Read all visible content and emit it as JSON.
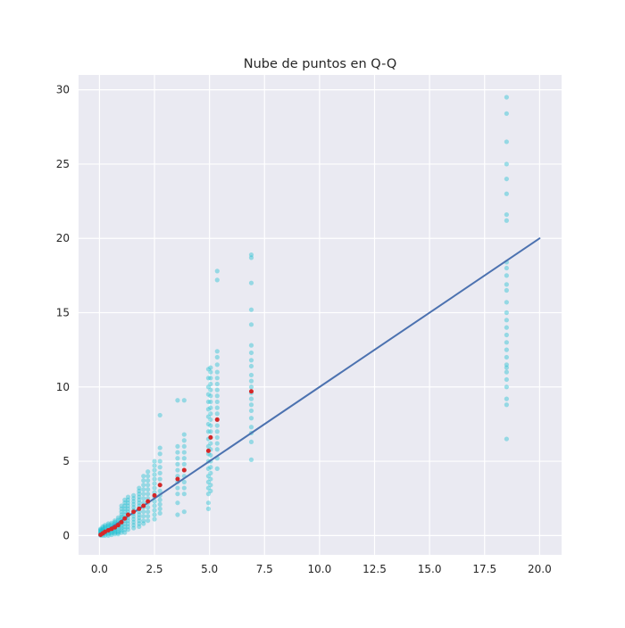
{
  "chart_data": {
    "type": "scatter",
    "title": "Nube de puntos en Q-Q",
    "xlabel": "",
    "ylabel": "",
    "xlim": [
      -0.95,
      21.0
    ],
    "ylim": [
      -1.3,
      31.0
    ],
    "x_ticks": [
      0.0,
      2.5,
      5.0,
      7.5,
      10.0,
      12.5,
      15.0,
      17.5,
      20.0
    ],
    "x_tick_labels": [
      "0.0",
      "2.5",
      "5.0",
      "7.5",
      "10.0",
      "12.5",
      "15.0",
      "17.5",
      "20.0"
    ],
    "y_ticks": [
      0,
      5,
      10,
      15,
      20,
      25,
      30
    ],
    "y_tick_labels": [
      "0",
      "5",
      "10",
      "15",
      "20",
      "25",
      "30"
    ],
    "grid": true,
    "legend": "none",
    "colors": {
      "background": "#eaeaf2",
      "grid": "#ffffff",
      "scatter": "#17becf",
      "median": "#d62728",
      "reference_line": "#4c72b0"
    },
    "reference_line": {
      "x": [
        0,
        20
      ],
      "y": [
        0,
        20
      ]
    },
    "scatter_columns": [
      {
        "x": 0.05,
        "y": [
          0.0,
          0.05,
          0.1,
          0.15,
          0.2,
          0.25,
          0.3,
          0.35,
          0.4,
          0.45
        ]
      },
      {
        "x": 0.15,
        "y": [
          0.0,
          0.1,
          0.2,
          0.3,
          0.4,
          0.5,
          0.6
        ]
      },
      {
        "x": 0.25,
        "y": [
          0.0,
          0.1,
          0.2,
          0.3,
          0.4,
          0.5,
          0.6,
          0.7
        ]
      },
      {
        "x": 0.4,
        "y": [
          0.0,
          0.1,
          0.2,
          0.3,
          0.4,
          0.5,
          0.6,
          0.7,
          0.8
        ]
      },
      {
        "x": 0.55,
        "y": [
          0.05,
          0.15,
          0.25,
          0.35,
          0.45,
          0.55,
          0.65,
          0.75,
          0.85
        ]
      },
      {
        "x": 0.7,
        "y": [
          0.1,
          0.2,
          0.3,
          0.4,
          0.5,
          0.6,
          0.7,
          0.8,
          0.9,
          1.0
        ]
      },
      {
        "x": 0.85,
        "y": [
          0.1,
          0.2,
          0.3,
          0.45,
          0.6,
          0.75,
          0.9,
          1.05,
          1.2
        ]
      },
      {
        "x": 1.0,
        "y": [
          0.2,
          0.35,
          0.5,
          0.65,
          0.8,
          0.95,
          1.1,
          1.25,
          1.4,
          1.6,
          1.8,
          2.0
        ]
      },
      {
        "x": 1.15,
        "y": [
          0.2,
          0.4,
          0.6,
          0.8,
          1.0,
          1.2,
          1.4,
          1.6,
          1.8,
          2.0,
          2.2,
          2.4
        ]
      },
      {
        "x": 1.3,
        "y": [
          0.4,
          0.6,
          0.8,
          1.0,
          1.2,
          1.4,
          1.6,
          1.8,
          2.0,
          2.2,
          2.4,
          2.6
        ]
      },
      {
        "x": 1.55,
        "y": [
          0.5,
          0.7,
          0.9,
          1.1,
          1.3,
          1.5,
          1.7,
          1.9,
          2.1,
          2.3,
          2.5,
          2.7
        ]
      },
      {
        "x": 1.8,
        "y": [
          0.6,
          0.8,
          1.0,
          1.2,
          1.4,
          1.6,
          1.8,
          2.0,
          2.2,
          2.4,
          2.6,
          2.8,
          3.0,
          3.2
        ]
      },
      {
        "x": 2.0,
        "y": [
          0.8,
          1.0,
          1.3,
          1.6,
          1.9,
          2.2,
          2.5,
          2.8,
          3.1,
          3.4,
          3.7,
          4.0
        ]
      },
      {
        "x": 2.2,
        "y": [
          1.0,
          1.3,
          1.6,
          1.9,
          2.2,
          2.5,
          2.8,
          3.1,
          3.4,
          3.7,
          4.0,
          4.3
        ]
      },
      {
        "x": 2.5,
        "y": [
          1.1,
          1.4,
          1.7,
          2.0,
          2.3,
          2.6,
          2.9,
          3.2,
          3.5,
          3.8,
          4.1,
          4.4,
          4.7,
          5.0
        ]
      },
      {
        "x": 2.75,
        "y": [
          1.5,
          1.8,
          2.1,
          2.4,
          2.7,
          3.0,
          3.4,
          3.8,
          4.2,
          4.6,
          5.0,
          5.5,
          5.9,
          8.1
        ]
      },
      {
        "x": 3.55,
        "y": [
          1.4,
          2.2,
          2.8,
          3.2,
          3.6,
          4.0,
          4.4,
          4.8,
          5.2,
          5.6,
          6.0,
          9.1
        ]
      },
      {
        "x": 3.85,
        "y": [
          1.6,
          2.8,
          3.2,
          3.6,
          4.0,
          4.4,
          4.8,
          5.2,
          5.6,
          6.0,
          6.4,
          6.8,
          9.1
        ]
      },
      {
        "x": 4.95,
        "y": [
          1.8,
          2.2,
          2.8,
          3.2,
          3.6,
          4.0,
          4.5,
          5.0,
          5.5,
          6.0,
          6.5,
          7.0,
          7.5,
          8.0,
          8.5,
          9.0,
          9.5,
          10.0,
          10.6,
          11.2
        ]
      },
      {
        "x": 5.05,
        "y": [
          3.0,
          3.4,
          3.8,
          4.2,
          4.6,
          5.0,
          5.4,
          5.8,
          6.2,
          6.6,
          7.0,
          7.4,
          7.8,
          8.2,
          8.6,
          9.0,
          9.4,
          9.8,
          10.2,
          10.6,
          11.0,
          11.3
        ]
      },
      {
        "x": 5.35,
        "y": [
          4.5,
          5.2,
          5.8,
          6.2,
          6.6,
          7.0,
          7.4,
          7.8,
          8.2,
          8.6,
          9.0,
          9.4,
          9.8,
          10.2,
          10.6,
          11.0,
          11.5,
          12.0,
          12.4,
          17.2,
          17.8
        ]
      },
      {
        "x": 6.9,
        "y": [
          5.1,
          6.3,
          6.9,
          7.3,
          7.9,
          8.4,
          8.8,
          9.2,
          9.6,
          10.0,
          10.4,
          10.8,
          11.4,
          11.8,
          12.3,
          12.8,
          14.2,
          15.2,
          17.0,
          18.7,
          18.9
        ]
      },
      {
        "x": 18.5,
        "y": [
          6.5,
          8.8,
          9.2,
          10.0,
          10.5,
          11.0,
          11.3,
          11.5,
          12.0,
          12.5,
          13.0,
          13.5,
          14.0,
          14.5,
          15.0,
          15.7,
          16.5,
          16.9,
          17.5,
          18.0,
          18.4,
          21.2,
          21.6,
          23.0,
          24.0,
          25.0,
          26.5,
          28.4,
          29.5
        ]
      }
    ],
    "median_points": {
      "x": [
        0.05,
        0.15,
        0.25,
        0.4,
        0.55,
        0.7,
        0.85,
        1.0,
        1.15,
        1.3,
        1.55,
        1.8,
        2.0,
        2.2,
        2.5,
        2.75,
        3.55,
        3.85,
        4.95,
        5.05,
        5.35,
        6.9
      ],
      "y": [
        0.05,
        0.15,
        0.25,
        0.35,
        0.45,
        0.55,
        0.7,
        0.9,
        1.15,
        1.4,
        1.6,
        1.8,
        2.0,
        2.3,
        2.7,
        3.4,
        3.8,
        4.4,
        5.7,
        6.6,
        7.8,
        9.7
      ]
    }
  }
}
